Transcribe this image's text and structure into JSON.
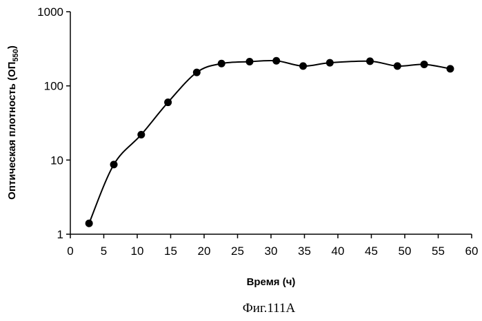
{
  "chart_data": {
    "type": "line",
    "xlabel": "Время (ч)",
    "ylabel_main": "Оптическая плотность (ОП",
    "ylabel_sub": "550",
    "ylabel_end": ")",
    "caption": "Фиг.111А",
    "xlim": [
      0,
      60
    ],
    "ylim": [
      1,
      1000
    ],
    "yscale": "log",
    "grid": false,
    "legend": "none",
    "x_ticks": [
      "0",
      "5",
      "10",
      "15",
      "20",
      "25",
      "30",
      "35",
      "40",
      "45",
      "50",
      "55",
      "60"
    ],
    "y_ticks": [
      "1",
      "10",
      "100",
      "1000"
    ],
    "series": [
      {
        "x": [
          2.8,
          6.5,
          10.6,
          14.6,
          18.9,
          22.6,
          26.8,
          30.8,
          34.8,
          38.8,
          44.8,
          48.9,
          52.9,
          56.8
        ],
        "y": [
          1.4,
          8.7,
          22,
          60,
          152,
          200,
          212,
          218,
          185,
          205,
          215,
          185,
          195,
          170
        ]
      }
    ],
    "colors": {
      "line": "#000000",
      "marker": "#000000"
    }
  }
}
